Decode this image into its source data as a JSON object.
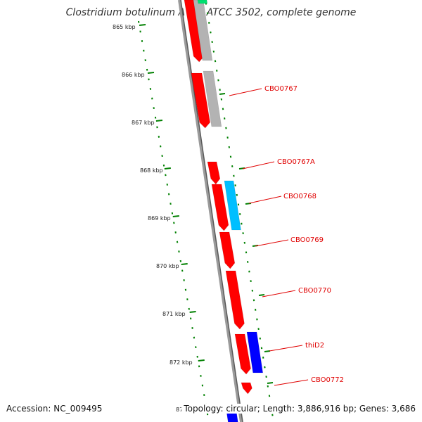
{
  "title": "Clostridium botulinum A str. ATCC 3502, complete genome",
  "footer": {
    "accession": "Accession: NC_009495",
    "stats": "Topology: circular; Length: 3,886,916 bp; Genes: 3,686",
    "partial_tick_label": "87"
  },
  "colors": {
    "forward_gene": "#ff0000",
    "rna_gene": "#b3b3b3",
    "light_blue_gene": "#00bfff",
    "dark_blue_gene": "#0000ff",
    "green_gene": "#00e070",
    "backbone": "#888888",
    "tick": "#008000",
    "label": "#e00000"
  },
  "kbp_ticks": [
    "865 kbp",
    "866 kbp",
    "867 kbp",
    "868 kbp",
    "869 kbp",
    "870 kbp",
    "871 kbp",
    "872 kbp"
  ],
  "gene_labels": [
    "CBO0767",
    "CBO0767A",
    "CBO0768",
    "CBO0769",
    "CBO0770",
    "thiD2",
    "CBO0772"
  ]
}
